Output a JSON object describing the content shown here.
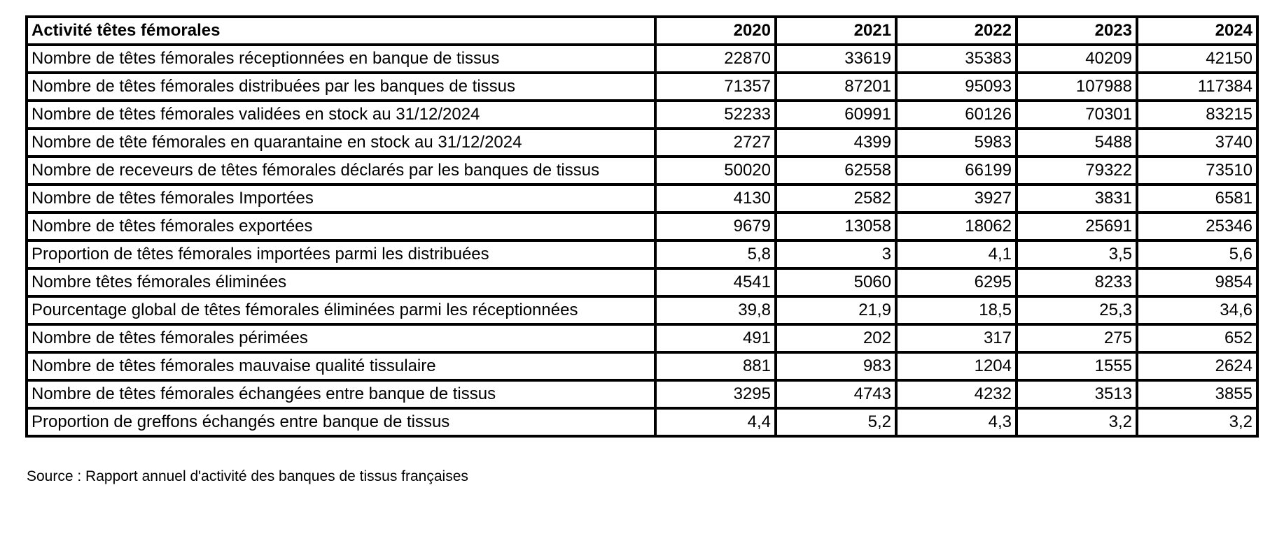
{
  "table": {
    "title": "Activité têtes fémorales",
    "years": [
      "2020",
      "2021",
      "2022",
      "2023",
      "2024"
    ],
    "rows": [
      {
        "label": "Nombre de têtes fémorales réceptionnées en banque de tissus",
        "values": [
          "22870",
          "33619",
          "35383",
          "40209",
          "42150"
        ]
      },
      {
        "label": "Nombre de têtes fémorales distribuées par les banques de tissus",
        "values": [
          "71357",
          "87201",
          "95093",
          "107988",
          "117384"
        ]
      },
      {
        "label": "Nombre de têtes fémorales validées en stock au 31/12/2024",
        "values": [
          "52233",
          "60991",
          "60126",
          "70301",
          "83215"
        ]
      },
      {
        "label": "Nombre de tête fémorales en quarantaine en stock au 31/12/2024",
        "values": [
          "2727",
          "4399",
          "5983",
          "5488",
          "3740"
        ]
      },
      {
        "label": "Nombre de receveurs de têtes fémorales déclarés par les banques de tissus",
        "values": [
          "50020",
          "62558",
          "66199",
          "79322",
          "73510"
        ]
      },
      {
        "label": "Nombre de têtes fémorales Importées",
        "values": [
          "4130",
          "2582",
          "3927",
          "3831",
          "6581"
        ]
      },
      {
        "label": "Nombre de têtes fémorales exportées",
        "values": [
          "9679",
          "13058",
          "18062",
          "25691",
          "25346"
        ]
      },
      {
        "label": "Proportion de têtes fémorales importées parmi les distribuées",
        "values": [
          "5,8",
          "3",
          "4,1",
          "3,5",
          "5,6"
        ]
      },
      {
        "label": "Nombre têtes fémorales éliminées",
        "values": [
          "4541",
          "5060",
          "6295",
          "8233",
          "9854"
        ]
      },
      {
        "label": "Pourcentage global de têtes fémorales éliminées parmi les réceptionnées",
        "values": [
          "39,8",
          "21,9",
          "18,5",
          "25,3",
          "34,6"
        ]
      },
      {
        "label": "Nombre de têtes fémorales périmées",
        "values": [
          "491",
          "202",
          "317",
          "275",
          "652"
        ]
      },
      {
        "label": "Nombre de têtes fémorales mauvaise qualité tissulaire",
        "values": [
          "881",
          "983",
          "1204",
          "1555",
          "2624"
        ]
      },
      {
        "label": "Nombre de têtes fémorales échangées entre banque de tissus",
        "values": [
          "3295",
          "4743",
          "4232",
          "3513",
          "3855"
        ]
      },
      {
        "label": "Proportion de greffons échangés entre banque de tissus",
        "values": [
          "4,4",
          "5,2",
          "4,3",
          "3,2",
          "3,2"
        ]
      }
    ]
  },
  "source_note": "Source : Rapport annuel d'activité des banques de tissus françaises",
  "colors": {
    "border": "#000000",
    "background": "#ffffff",
    "text": "#000000"
  }
}
